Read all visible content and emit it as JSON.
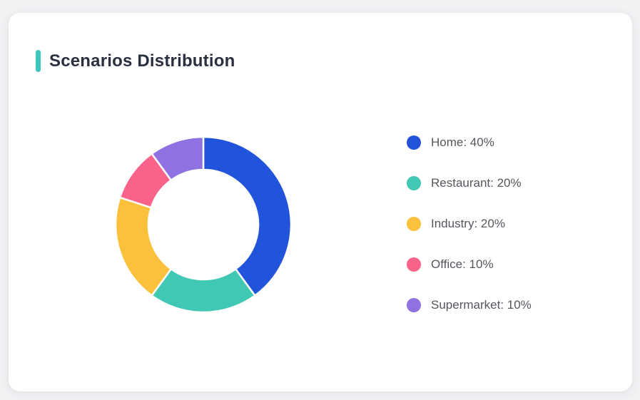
{
  "page": {
    "background_color": "#f1f2f4"
  },
  "card": {
    "title": "Scenarios Distribution",
    "accent_color": "#3ec5bc"
  },
  "chart_data": {
    "type": "pie",
    "variant": "donut",
    "title": "Scenarios Distribution",
    "categories": [
      "Home",
      "Restaurant",
      "Industry",
      "Office",
      "Supermarket"
    ],
    "values": [
      40,
      20,
      20,
      10,
      10
    ],
    "unit": "%",
    "colors": [
      "#2253db",
      "#40c8b5",
      "#fcc13c",
      "#f96389",
      "#8f71e1"
    ],
    "legend_labels": [
      "Home: 40%",
      "Restaurant: 20%",
      "Industry: 20%",
      "Office: 10%",
      "Supermarket: 10%"
    ],
    "legend_position": "right",
    "start_angle_deg": 0,
    "direction": "clockwise",
    "outer_radius": 123,
    "inner_radius": 77,
    "slice_gap_color": "#ffffff"
  }
}
